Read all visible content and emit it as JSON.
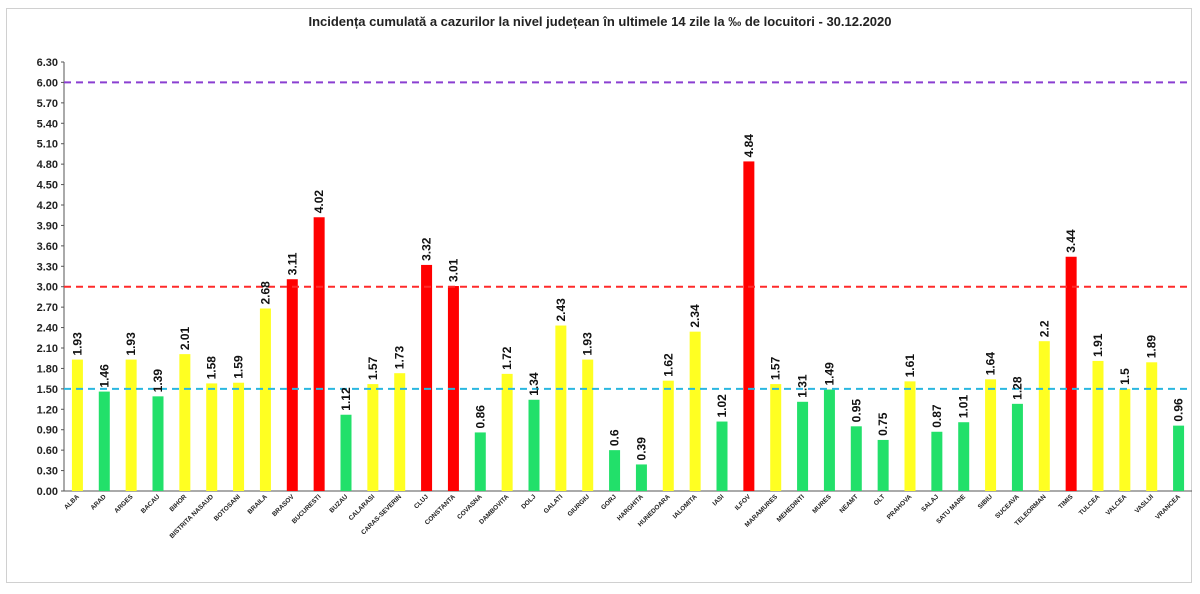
{
  "chart_data": {
    "type": "bar",
    "title": "Incidența cumulată a cazurilor la nivel județean în ultimele 14 zile la ‰ de locuitori - 30.12.2020",
    "xlabel": "",
    "ylabel": "",
    "ylim": [
      0,
      6.3
    ],
    "yticks": [
      "0.00",
      "0.30",
      "0.60",
      "0.90",
      "1.20",
      "1.50",
      "1.80",
      "2.10",
      "2.40",
      "2.70",
      "3.00",
      "3.30",
      "3.60",
      "3.90",
      "4.20",
      "4.50",
      "4.80",
      "5.10",
      "5.40",
      "5.70",
      "6.00",
      "6.30"
    ],
    "grid": false,
    "categories": [
      "ALBA",
      "ARAD",
      "ARGES",
      "BACAU",
      "BIHOR",
      "BISTRITA NASAUD",
      "BOTOSANI",
      "BRAILA",
      "BRASOV",
      "BUCURESTI",
      "BUZAU",
      "CALARASI",
      "CARAS-SEVERIN",
      "CLUJ",
      "CONSTANTA",
      "COVASNA",
      "DAMBOVITA",
      "DOLJ",
      "GALATI",
      "GIURGIU",
      "GORJ",
      "HARGHITA",
      "HUNEDOARA",
      "IALOMITA",
      "IASI",
      "ILFOV",
      "MARAMURES",
      "MEHEDINTI",
      "MURES",
      "NEAMT",
      "OLT",
      "PRAHOVA",
      "SALAJ",
      "SATU MARE",
      "SIBIU",
      "SUCEAVA",
      "TELEORMAN",
      "TIMIS",
      "TULCEA",
      "VALCEA",
      "VASLUI",
      "VRANCEA"
    ],
    "values": [
      1.93,
      1.46,
      1.93,
      1.39,
      2.01,
      1.58,
      1.59,
      2.68,
      3.11,
      4.02,
      1.12,
      1.57,
      1.73,
      3.32,
      3.01,
      0.86,
      1.72,
      1.34,
      2.43,
      1.93,
      0.6,
      0.39,
      1.62,
      2.34,
      1.02,
      4.84,
      1.57,
      1.31,
      1.49,
      0.95,
      0.75,
      1.61,
      0.87,
      1.01,
      1.64,
      1.28,
      2.2,
      3.44,
      1.91,
      1.5,
      1.89,
      0.96
    ],
    "data_labels": [
      "1.93",
      "1.46",
      "1.93",
      "1.39",
      "2.01",
      "1.58",
      "1.59",
      "2.68",
      "3.11",
      "4.02",
      "1.12",
      "1.57",
      "1.73",
      "3.32",
      "3.01",
      "0.86",
      "1.72",
      "1.34",
      "2.43",
      "1.93",
      "0.6",
      "0.39",
      "1.62",
      "2.34",
      "1.02",
      "4.84",
      "1.57",
      "1.31",
      "1.49",
      "0.95",
      "0.75",
      "1.61",
      "0.87",
      "1.01",
      "1.64",
      "1.28",
      "2.2",
      "3.44",
      "1.91",
      "1.5",
      "1.89",
      "0.96"
    ],
    "thresholds": [
      {
        "value": 1.5,
        "color": "#2ab7e0",
        "style": "dashed"
      },
      {
        "value": 3.0,
        "color": "#ff2a2a",
        "style": "dashed"
      },
      {
        "value": 6.0,
        "color": "#8a3fd1",
        "style": "dashed"
      }
    ],
    "bar_colors": {
      "below_1_5": "#22e06a",
      "between_1_5_and_3": "#ffff22",
      "above_3": "#ff0000"
    }
  }
}
